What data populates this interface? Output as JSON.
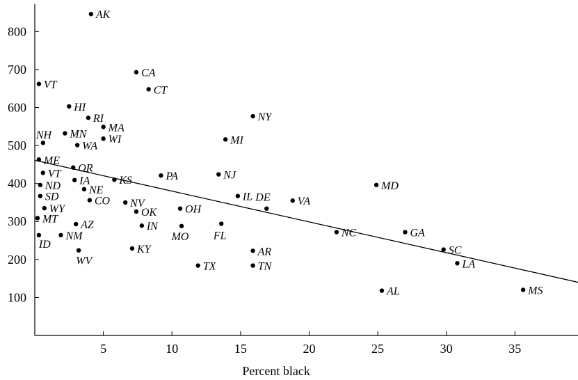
{
  "chart_data": {
    "type": "scatter",
    "title": "",
    "xlabel": "Percent black",
    "ylabel": "",
    "xlim": [
      0,
      39.6
    ],
    "ylim": [
      0,
      872
    ],
    "xticks": [
      "5",
      "10",
      "15",
      "20",
      "25",
      "30",
      "35"
    ],
    "yticks": [
      "100",
      "200",
      "300",
      "400",
      "500",
      "600",
      "700",
      "800"
    ],
    "grid": false,
    "colors": {
      "points": "#000000",
      "line": "#000000"
    },
    "regression_line": {
      "x": [
        0,
        39.6
      ],
      "y": [
        461,
        140
      ]
    },
    "points": [
      {
        "label": "AK",
        "x": 4.1,
        "y": 846
      },
      {
        "label": "CA",
        "x": 7.4,
        "y": 693
      },
      {
        "label": "CT",
        "x": 8.3,
        "y": 648
      },
      {
        "label": "VT",
        "x": 0.3,
        "y": 662
      },
      {
        "label": "HI",
        "x": 2.5,
        "y": 603
      },
      {
        "label": "RI",
        "x": 3.9,
        "y": 573
      },
      {
        "label": "NY",
        "x": 15.9,
        "y": 577
      },
      {
        "label": "MA",
        "x": 5.0,
        "y": 549
      },
      {
        "label": "NH",
        "x": 0.6,
        "y": 507
      },
      {
        "label": "MN",
        "x": 2.2,
        "y": 532
      },
      {
        "label": "WI",
        "x": 5.0,
        "y": 518
      },
      {
        "label": "WA",
        "x": 3.1,
        "y": 501
      },
      {
        "label": "MI",
        "x": 13.9,
        "y": 516
      },
      {
        "label": "ME",
        "x": 0.3,
        "y": 463
      },
      {
        "label": "OR",
        "x": 2.8,
        "y": 442
      },
      {
        "label": "KS",
        "x": 5.8,
        "y": 410
      },
      {
        "label": "VT",
        "x": 0.6,
        "y": 428
      },
      {
        "label": "IA",
        "x": 2.9,
        "y": 409
      },
      {
        "label": "PA",
        "x": 9.2,
        "y": 421
      },
      {
        "label": "NJ",
        "x": 13.4,
        "y": 424
      },
      {
        "label": "ND",
        "x": 0.4,
        "y": 396
      },
      {
        "label": "NE",
        "x": 3.6,
        "y": 385
      },
      {
        "label": "MD",
        "x": 24.9,
        "y": 396
      },
      {
        "label": "SD",
        "x": 0.4,
        "y": 367
      },
      {
        "label": "CO",
        "x": 4.0,
        "y": 356
      },
      {
        "label": "IL",
        "x": 14.8,
        "y": 367
      },
      {
        "label": "NV",
        "x": 6.6,
        "y": 350
      },
      {
        "label": "VA",
        "x": 18.8,
        "y": 355
      },
      {
        "label": "WY",
        "x": 0.7,
        "y": 335
      },
      {
        "label": "DE",
        "x": 16.9,
        "y": 334
      },
      {
        "label": "OH",
        "x": 10.6,
        "y": 334
      },
      {
        "label": "OK",
        "x": 7.4,
        "y": 326
      },
      {
        "label": "MT",
        "x": 0.2,
        "y": 309
      },
      {
        "label": "AZ",
        "x": 3.0,
        "y": 293
      },
      {
        "label": "IN",
        "x": 7.8,
        "y": 289
      },
      {
        "label": "FL",
        "x": 13.6,
        "y": 294
      },
      {
        "label": "MO",
        "x": 10.7,
        "y": 288
      },
      {
        "label": "GA",
        "x": 27.0,
        "y": 272
      },
      {
        "label": "NC",
        "x": 22.0,
        "y": 272
      },
      {
        "label": "ID",
        "x": 0.3,
        "y": 264
      },
      {
        "label": "NM",
        "x": 1.9,
        "y": 264
      },
      {
        "label": "SC",
        "x": 29.8,
        "y": 226
      },
      {
        "label": "KY",
        "x": 7.1,
        "y": 229
      },
      {
        "label": "WV",
        "x": 3.2,
        "y": 224
      },
      {
        "label": "AR",
        "x": 15.9,
        "y": 223
      },
      {
        "label": "LA",
        "x": 30.8,
        "y": 190
      },
      {
        "label": "TX",
        "x": 11.9,
        "y": 184
      },
      {
        "label": "TN",
        "x": 15.9,
        "y": 184
      },
      {
        "label": "AL",
        "x": 25.3,
        "y": 118
      },
      {
        "label": "MS",
        "x": 35.6,
        "y": 120
      }
    ]
  }
}
